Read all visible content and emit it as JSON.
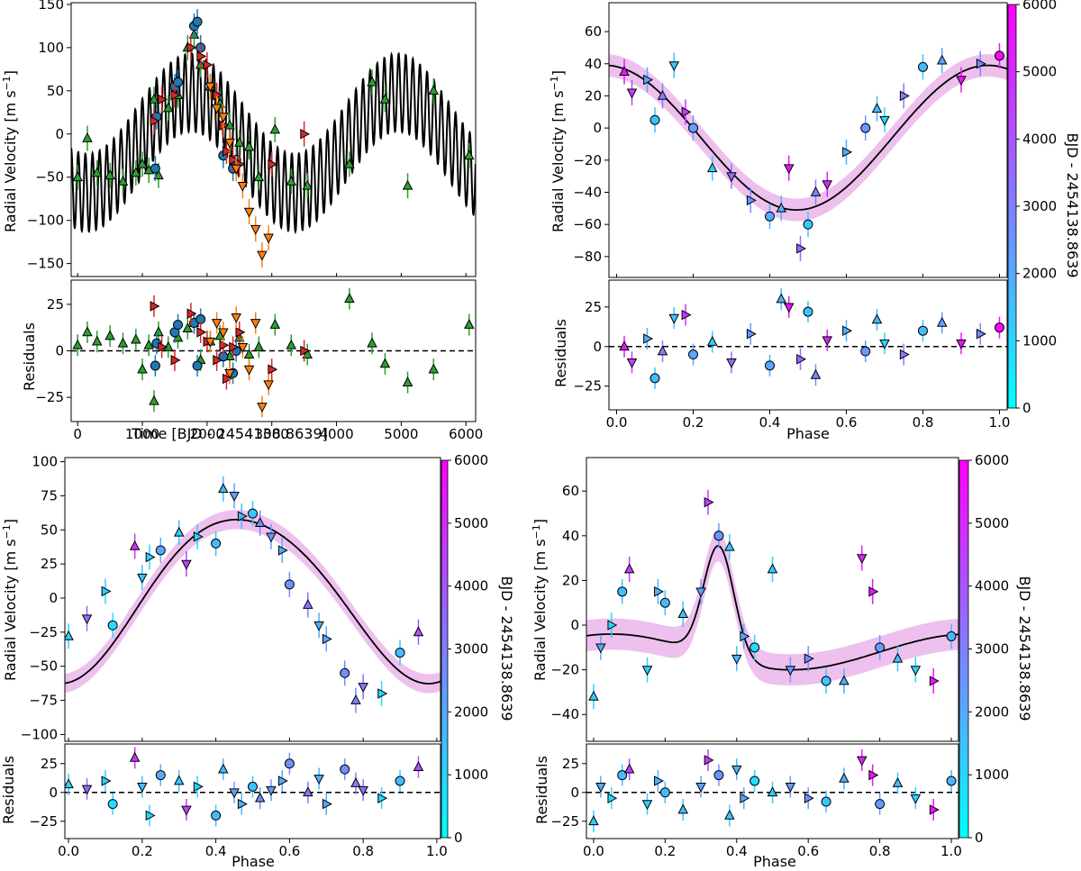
{
  "figure": {
    "colorbar_label": "BJD - 2454138.8639",
    "time_axis_label": "Time [BJD - 2454138.8639]",
    "phase_axis_label": "Phase",
    "rv_label": "Radial Velocity [m s",
    "rv_label_exp": "−1",
    "rv_label_close": "]",
    "residuals_label": "Residuals"
  },
  "chart_data": [
    {
      "id": "time_series",
      "type": "scatter",
      "xlabel": "Time [BJD - 2454138.8639]",
      "ylabel": "Radial Velocity [m s^-1]",
      "xlim": [
        -100,
        6150
      ],
      "xticks": [
        0,
        1000,
        2000,
        3000,
        4000,
        5000,
        6000
      ],
      "ylim": [
        -165,
        152
      ],
      "yticks": [
        -150,
        -100,
        -50,
        0,
        50,
        100,
        150
      ],
      "res_ylim": [
        -38,
        38
      ],
      "res_yticks": [
        -25,
        0,
        25
      ],
      "model_line": "multi-planet Keplerian model (black)",
      "series": [
        {
          "name": "green triangles",
          "marker": "^",
          "color": "#2ca02c",
          "x": [
            0,
            150,
            300,
            500,
            700,
            900,
            1000,
            1100,
            1180,
            1250,
            1400,
            1550,
            1700,
            1800,
            1900,
            2050,
            2200,
            2350,
            2500,
            2650,
            2800,
            3050,
            3300,
            3550,
            4200,
            4550,
            4750,
            5100,
            5500,
            6050
          ],
          "y": [
            -50,
            -5,
            -45,
            -48,
            -55,
            -45,
            -35,
            -42,
            40,
            -48,
            30,
            45,
            100,
            115,
            80,
            55,
            35,
            10,
            -10,
            -15,
            -50,
            5,
            -55,
            -60,
            -35,
            60,
            40,
            -60,
            50,
            -25
          ],
          "res": [
            3,
            10,
            5,
            8,
            4,
            6,
            -10,
            3,
            -27,
            10,
            2,
            7,
            12,
            15,
            -5,
            5,
            8,
            -3,
            7,
            -2,
            2,
            14,
            3,
            -2,
            28,
            4,
            -7,
            -17,
            -10,
            14
          ]
        },
        {
          "name": "blue circles",
          "marker": "o",
          "color": "#1f77b4",
          "x": [
            1200,
            1220,
            1500,
            1550,
            1800,
            1850,
            1900,
            2250,
            2400,
            2450
          ],
          "y": [
            -40,
            20,
            55,
            60,
            125,
            130,
            100,
            -25,
            -40,
            -30
          ],
          "res": [
            -8,
            4,
            10,
            14,
            15,
            -8,
            17,
            -3,
            -12,
            0
          ]
        },
        {
          "name": "red right-triangles",
          "marker": ">",
          "color": "#d62728",
          "x": [
            1180,
            1300,
            1500,
            1750,
            1900,
            2000,
            2150,
            2250,
            2300,
            2400,
            2500,
            3000,
            3500
          ],
          "y": [
            15,
            40,
            45,
            100,
            90,
            80,
            45,
            10,
            -20,
            -30,
            -35,
            -35,
            0
          ],
          "res": [
            24,
            2,
            -5,
            20,
            10,
            5,
            -5,
            3,
            -15,
            2,
            10,
            -10,
            0
          ]
        },
        {
          "name": "orange down-triangles",
          "marker": "v",
          "color": "#ff7f0e",
          "x": [
            2050,
            2150,
            2250,
            2350,
            2450,
            2550,
            2650,
            2750,
            2850,
            2950
          ],
          "y": [
            55,
            30,
            20,
            -10,
            -40,
            -60,
            -90,
            -110,
            -140,
            -120
          ],
          "res": [
            5,
            15,
            10,
            -12,
            18,
            2,
            -10,
            15,
            -30,
            -18
          ]
        }
      ]
    },
    {
      "id": "phase_b",
      "type": "scatter",
      "xlabel": "Phase",
      "ylabel": "Radial Velocity [m s^-1]",
      "xlim": [
        -0.02,
        1.02
      ],
      "xticks": [
        0.0,
        0.2,
        0.4,
        0.6,
        0.8,
        1.0
      ],
      "ylim": [
        -93,
        78
      ],
      "yticks": [
        -80,
        -60,
        -40,
        -20,
        0,
        20,
        40,
        60
      ],
      "res_ylim": [
        -40,
        42
      ],
      "res_yticks": [
        -25,
        0,
        25
      ],
      "colorbar_range": [
        0,
        6000
      ],
      "colorbar_ticks": [
        0,
        1000,
        2000,
        3000,
        4000,
        5000,
        6000
      ],
      "series": [
        {
          "name": "observations",
          "color_scale": "BJD - 2454138.8639",
          "x": [
            0.02,
            0.04,
            0.08,
            0.1,
            0.12,
            0.15,
            0.18,
            0.2,
            0.25,
            0.3,
            0.35,
            0.4,
            0.43,
            0.45,
            0.48,
            0.5,
            0.52,
            0.55,
            0.6,
            0.65,
            0.68,
            0.7,
            0.75,
            0.8,
            0.85,
            0.9,
            0.95,
            1.0
          ],
          "y": [
            35,
            22,
            30,
            5,
            20,
            39,
            10,
            0,
            -25,
            -30,
            -45,
            -55,
            -50,
            -25,
            -75,
            -60,
            -40,
            -35,
            -15,
            0,
            12,
            5,
            20,
            38,
            42,
            30,
            40,
            45
          ],
          "t": [
            5500,
            4500,
            2000,
            1500,
            3000,
            1400,
            4800,
            2200,
            1200,
            3500,
            2500,
            2000,
            1800,
            5500,
            3600,
            1300,
            2800,
            5200,
            1900,
            2400,
            1700,
            900,
            3100,
            1600,
            2100,
            5600,
            2700,
            5800
          ],
          "res": [
            0,
            -10,
            5,
            -20,
            -3,
            18,
            20,
            -5,
            3,
            -10,
            8,
            -12,
            30,
            25,
            -8,
            22,
            -18,
            4,
            10,
            -3,
            17,
            2,
            -5,
            10,
            15,
            2,
            8,
            12
          ]
        }
      ]
    },
    {
      "id": "phase_c",
      "type": "scatter",
      "xlabel": "Phase",
      "ylabel": "Radial Velocity [m s^-1]",
      "xlim": [
        -0.01,
        1.01
      ],
      "xticks": [
        0.0,
        0.2,
        0.4,
        0.6,
        0.8,
        1.0
      ],
      "ylim": [
        -105,
        103
      ],
      "yticks": [
        -100,
        -75,
        -50,
        -25,
        0,
        25,
        50,
        75,
        100
      ],
      "res_ylim": [
        -40,
        42
      ],
      "res_yticks": [
        -25,
        0,
        25
      ],
      "colorbar_range": [
        0,
        6000
      ],
      "colorbar_ticks": [
        0,
        1000,
        2000,
        3000,
        4000,
        5000,
        6000
      ],
      "series": [
        {
          "name": "observations",
          "color_scale": "BJD - 2454138.8639",
          "x": [
            0.0,
            0.05,
            0.1,
            0.12,
            0.18,
            0.2,
            0.22,
            0.25,
            0.3,
            0.32,
            0.35,
            0.4,
            0.42,
            0.45,
            0.47,
            0.5,
            0.52,
            0.55,
            0.58,
            0.6,
            0.65,
            0.68,
            0.7,
            0.75,
            0.78,
            0.8,
            0.85,
            0.9,
            0.95
          ],
          "y": [
            -28,
            -15,
            5,
            -20,
            38,
            15,
            30,
            35,
            48,
            25,
            45,
            40,
            80,
            75,
            60,
            62,
            55,
            45,
            35,
            10,
            -5,
            -20,
            -30,
            -55,
            -75,
            -65,
            -70,
            -40,
            -25
          ],
          "t": [
            1200,
            3500,
            1100,
            800,
            4800,
            1500,
            1000,
            2000,
            1300,
            4500,
            900,
            1600,
            1700,
            2200,
            1800,
            1400,
            2800,
            2400,
            2000,
            2600,
            3200,
            1900,
            2100,
            2700,
            3000,
            3300,
            900,
            1500,
            4200
          ],
          "res": [
            7,
            3,
            10,
            -10,
            30,
            5,
            -20,
            15,
            10,
            -15,
            5,
            -20,
            20,
            0,
            -10,
            5,
            -5,
            2,
            10,
            25,
            0,
            12,
            -10,
            20,
            8,
            2,
            -5,
            10,
            22
          ]
        }
      ]
    },
    {
      "id": "phase_d",
      "type": "scatter",
      "xlabel": "Phase",
      "ylabel": "Radial Velocity [m s^-1]",
      "xlim": [
        -0.02,
        1.02
      ],
      "xticks": [
        0.0,
        0.2,
        0.4,
        0.6,
        0.8,
        1.0
      ],
      "ylim": [
        -52,
        75
      ],
      "yticks": [
        -40,
        -20,
        0,
        20,
        40,
        60
      ],
      "res_ylim": [
        -40,
        42
      ],
      "res_yticks": [
        -25,
        0,
        25
      ],
      "colorbar_range": [
        0,
        6000
      ],
      "colorbar_ticks": [
        0,
        1000,
        2000,
        3000,
        4000,
        5000,
        6000
      ],
      "series": [
        {
          "name": "observations",
          "color_scale": "BJD - 2454138.8639",
          "x": [
            0.0,
            0.02,
            0.05,
            0.08,
            0.1,
            0.15,
            0.18,
            0.2,
            0.25,
            0.3,
            0.32,
            0.35,
            0.38,
            0.4,
            0.42,
            0.45,
            0.5,
            0.55,
            0.6,
            0.65,
            0.7,
            0.75,
            0.78,
            0.8,
            0.85,
            0.9,
            0.95,
            1.0
          ],
          "y": [
            -32,
            -10,
            0,
            15,
            25,
            -20,
            15,
            10,
            5,
            15,
            55,
            40,
            35,
            -15,
            -5,
            -10,
            25,
            -20,
            -15,
            -25,
            -25,
            30,
            15,
            -10,
            -15,
            -20,
            -25,
            -5
          ],
          "t": [
            1200,
            2000,
            900,
            1500,
            4500,
            1100,
            1800,
            1600,
            1400,
            2200,
            4600,
            2500,
            1300,
            1700,
            2100,
            900,
            1200,
            2400,
            2600,
            1300,
            1900,
            5200,
            5500,
            2300,
            1500,
            1100,
            5600,
            1800
          ],
          "res": [
            -25,
            5,
            -5,
            15,
            20,
            -10,
            10,
            0,
            -15,
            5,
            28,
            15,
            -20,
            20,
            -5,
            10,
            0,
            5,
            -5,
            -8,
            12,
            28,
            15,
            -10,
            8,
            -5,
            -15,
            10
          ]
        }
      ]
    }
  ]
}
